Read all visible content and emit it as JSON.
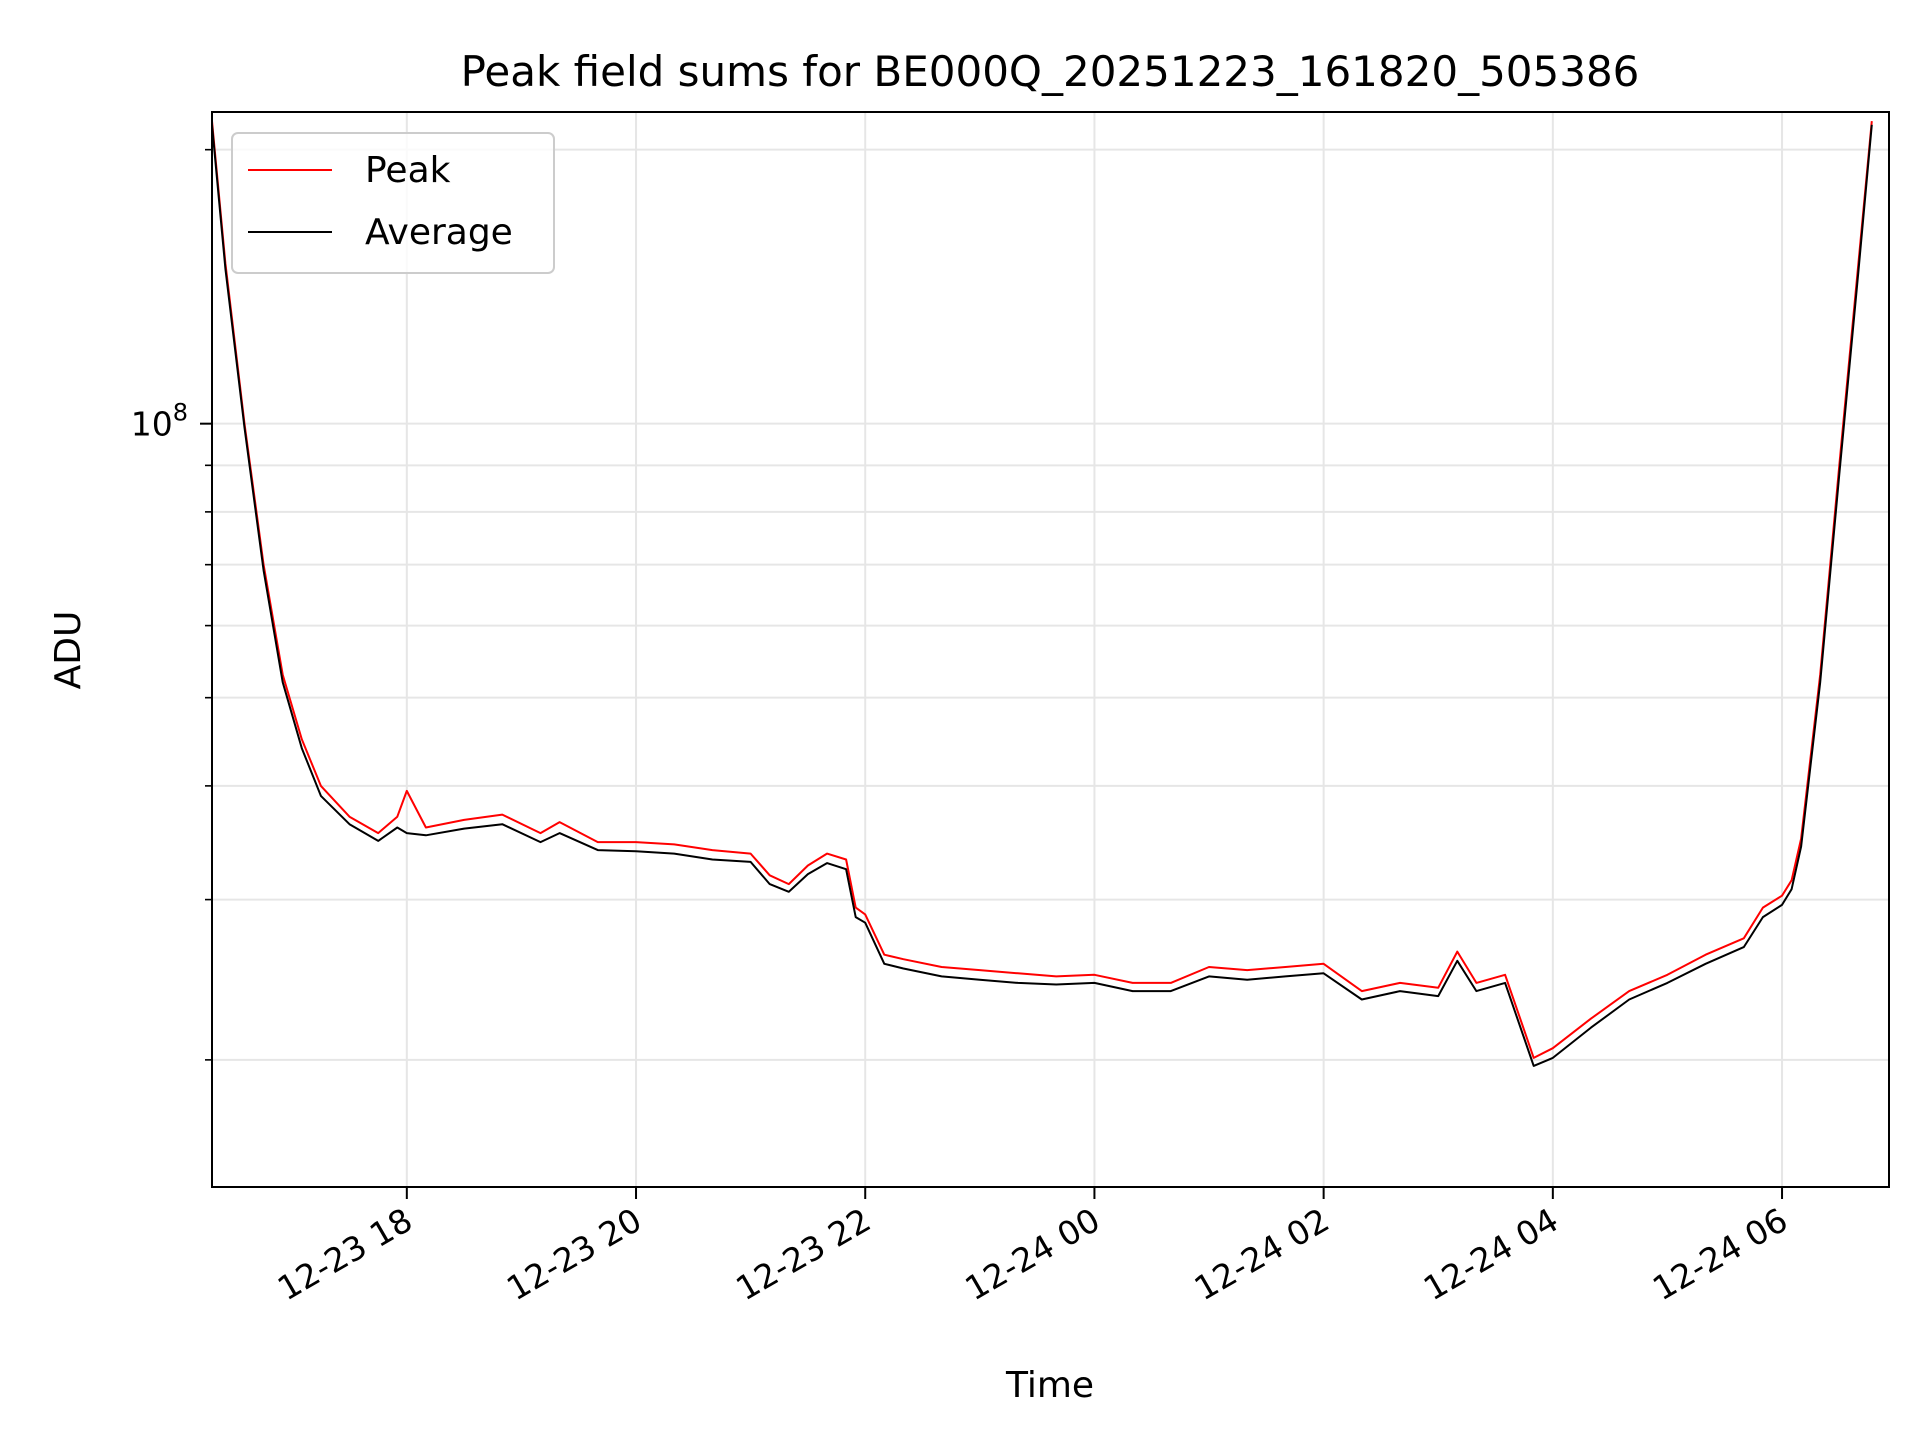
{
  "chart_data": {
    "type": "line",
    "title": "Peak field sums for BE000Q_20251223_161820_505386",
    "xlabel": "Time",
    "ylabel": "ADU",
    "y_scale": "log",
    "grid": true,
    "grid_minor": true,
    "legend_placement": "upper left",
    "x_range": [
      "2025-12-23 16:18",
      "2025-12-24 06:56"
    ],
    "y_range": [
      14500000,
      220000000
    ],
    "x_ticks": [
      {
        "t": "2025-12-23 18:00",
        "label": "12-23 18"
      },
      {
        "t": "2025-12-23 20:00",
        "label": "12-23 20"
      },
      {
        "t": "2025-12-23 22:00",
        "label": "12-23 22"
      },
      {
        "t": "2025-12-24 00:00",
        "label": "12-24 00"
      },
      {
        "t": "2025-12-24 02:00",
        "label": "12-24 02"
      },
      {
        "t": "2025-12-24 04:00",
        "label": "12-24 04"
      },
      {
        "t": "2025-12-24 06:00",
        "label": "12-24 06"
      }
    ],
    "y_major_ticks": [
      {
        "value": 100000000,
        "label_base": "10",
        "label_exp": "8"
      }
    ],
    "y_minor_ticks": [
      20000000,
      30000000,
      40000000,
      50000000,
      60000000,
      70000000,
      80000000,
      90000000,
      200000000
    ],
    "series": [
      {
        "name": "Peak",
        "color": "#ff0000",
        "points": [
          [
            "2025-12-23 16:18",
            215000000
          ],
          [
            "2025-12-23 16:25",
            150000000
          ],
          [
            "2025-12-23 16:35",
            100000000
          ],
          [
            "2025-12-23 16:45",
            70000000
          ],
          [
            "2025-12-23 16:55",
            53000000
          ],
          [
            "2025-12-23 17:05",
            45000000
          ],
          [
            "2025-12-23 17:15",
            40000000
          ],
          [
            "2025-12-23 17:30",
            37000000
          ],
          [
            "2025-12-23 17:45",
            35500000
          ],
          [
            "2025-12-23 17:55",
            37000000
          ],
          [
            "2025-12-23 18:00",
            39500000
          ],
          [
            "2025-12-23 18:10",
            36000000
          ],
          [
            "2025-12-23 18:30",
            36700000
          ],
          [
            "2025-12-23 18:50",
            37200000
          ],
          [
            "2025-12-23 19:10",
            35500000
          ],
          [
            "2025-12-23 19:20",
            36500000
          ],
          [
            "2025-12-23 19:40",
            34700000
          ],
          [
            "2025-12-23 20:00",
            34700000
          ],
          [
            "2025-12-23 20:20",
            34500000
          ],
          [
            "2025-12-23 20:40",
            34000000
          ],
          [
            "2025-12-23 21:00",
            33700000
          ],
          [
            "2025-12-23 21:10",
            31900000
          ],
          [
            "2025-12-23 21:20",
            31200000
          ],
          [
            "2025-12-23 21:30",
            32700000
          ],
          [
            "2025-12-23 21:40",
            33700000
          ],
          [
            "2025-12-23 21:50",
            33200000
          ],
          [
            "2025-12-23 21:55",
            29400000
          ],
          [
            "2025-12-23 22:00",
            28900000
          ],
          [
            "2025-12-23 22:10",
            26100000
          ],
          [
            "2025-12-23 22:20",
            25800000
          ],
          [
            "2025-12-23 22:40",
            25300000
          ],
          [
            "2025-12-23 23:00",
            25100000
          ],
          [
            "2025-12-23 23:20",
            24900000
          ],
          [
            "2025-12-23 23:40",
            24700000
          ],
          [
            "2025-12-24 00:00",
            24800000
          ],
          [
            "2025-12-24 00:20",
            24300000
          ],
          [
            "2025-12-24 00:40",
            24300000
          ],
          [
            "2025-12-24 01:00",
            25300000
          ],
          [
            "2025-12-24 01:20",
            25100000
          ],
          [
            "2025-12-24 01:40",
            25300000
          ],
          [
            "2025-12-24 02:00",
            25500000
          ],
          [
            "2025-12-24 02:20",
            23800000
          ],
          [
            "2025-12-24 02:40",
            24300000
          ],
          [
            "2025-12-24 03:00",
            24000000
          ],
          [
            "2025-12-24 03:10",
            26300000
          ],
          [
            "2025-12-24 03:20",
            24300000
          ],
          [
            "2025-12-24 03:35",
            24800000
          ],
          [
            "2025-12-24 03:50",
            20100000
          ],
          [
            "2025-12-24 04:00",
            20600000
          ],
          [
            "2025-12-24 04:20",
            22200000
          ],
          [
            "2025-12-24 04:40",
            23800000
          ],
          [
            "2025-12-24 05:00",
            24800000
          ],
          [
            "2025-12-24 05:20",
            26100000
          ],
          [
            "2025-12-24 05:40",
            27200000
          ],
          [
            "2025-12-24 05:50",
            29400000
          ],
          [
            "2025-12-24 06:00",
            30300000
          ],
          [
            "2025-12-24 06:05",
            31500000
          ],
          [
            "2025-12-24 06:10",
            35000000
          ],
          [
            "2025-12-24 06:20",
            53000000
          ],
          [
            "2025-12-24 06:30",
            90000000
          ],
          [
            "2025-12-24 06:40",
            150000000
          ],
          [
            "2025-12-24 06:47",
            215000000
          ]
        ]
      },
      {
        "name": "Average",
        "color": "#000000",
        "points": [
          [
            "2025-12-23 16:18",
            213000000
          ],
          [
            "2025-12-23 16:25",
            148000000
          ],
          [
            "2025-12-23 16:35",
            99000000
          ],
          [
            "2025-12-23 16:45",
            69000000
          ],
          [
            "2025-12-23 16:55",
            52000000
          ],
          [
            "2025-12-23 17:05",
            44000000
          ],
          [
            "2025-12-23 17:15",
            39000000
          ],
          [
            "2025-12-23 17:30",
            36300000
          ],
          [
            "2025-12-23 17:45",
            34800000
          ],
          [
            "2025-12-23 17:55",
            36000000
          ],
          [
            "2025-12-23 18:00",
            35500000
          ],
          [
            "2025-12-23 18:10",
            35300000
          ],
          [
            "2025-12-23 18:30",
            35900000
          ],
          [
            "2025-12-23 18:50",
            36300000
          ],
          [
            "2025-12-23 19:10",
            34700000
          ],
          [
            "2025-12-23 19:20",
            35500000
          ],
          [
            "2025-12-23 19:40",
            34000000
          ],
          [
            "2025-12-23 20:00",
            33900000
          ],
          [
            "2025-12-23 20:20",
            33700000
          ],
          [
            "2025-12-23 20:40",
            33200000
          ],
          [
            "2025-12-23 21:00",
            33000000
          ],
          [
            "2025-12-23 21:10",
            31200000
          ],
          [
            "2025-12-23 21:20",
            30600000
          ],
          [
            "2025-12-23 21:30",
            32000000
          ],
          [
            "2025-12-23 21:40",
            32900000
          ],
          [
            "2025-12-23 21:50",
            32400000
          ],
          [
            "2025-12-23 21:55",
            28700000
          ],
          [
            "2025-12-23 22:00",
            28300000
          ],
          [
            "2025-12-23 22:10",
            25500000
          ],
          [
            "2025-12-23 22:20",
            25200000
          ],
          [
            "2025-12-23 22:40",
            24700000
          ],
          [
            "2025-12-23 23:00",
            24500000
          ],
          [
            "2025-12-23 23:20",
            24300000
          ],
          [
            "2025-12-23 23:40",
            24200000
          ],
          [
            "2025-12-24 00:00",
            24300000
          ],
          [
            "2025-12-24 00:20",
            23800000
          ],
          [
            "2025-12-24 00:40",
            23800000
          ],
          [
            "2025-12-24 01:00",
            24700000
          ],
          [
            "2025-12-24 01:20",
            24500000
          ],
          [
            "2025-12-24 01:40",
            24700000
          ],
          [
            "2025-12-24 02:00",
            24900000
          ],
          [
            "2025-12-24 02:20",
            23300000
          ],
          [
            "2025-12-24 02:40",
            23800000
          ],
          [
            "2025-12-24 03:00",
            23500000
          ],
          [
            "2025-12-24 03:10",
            25700000
          ],
          [
            "2025-12-24 03:20",
            23800000
          ],
          [
            "2025-12-24 03:35",
            24300000
          ],
          [
            "2025-12-24 03:50",
            19700000
          ],
          [
            "2025-12-24 04:00",
            20100000
          ],
          [
            "2025-12-24 04:20",
            21700000
          ],
          [
            "2025-12-24 04:40",
            23300000
          ],
          [
            "2025-12-24 05:00",
            24300000
          ],
          [
            "2025-12-24 05:20",
            25500000
          ],
          [
            "2025-12-24 05:40",
            26600000
          ],
          [
            "2025-12-24 05:50",
            28700000
          ],
          [
            "2025-12-24 06:00",
            29600000
          ],
          [
            "2025-12-24 06:05",
            30800000
          ],
          [
            "2025-12-24 06:10",
            34300000
          ],
          [
            "2025-12-24 06:20",
            52000000
          ],
          [
            "2025-12-24 06:30",
            88000000
          ],
          [
            "2025-12-24 06:40",
            147000000
          ],
          [
            "2025-12-24 06:47",
            213000000
          ]
        ]
      }
    ]
  }
}
